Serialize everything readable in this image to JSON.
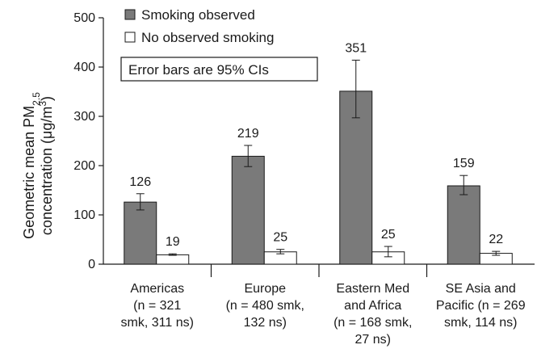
{
  "chart_data": {
    "type": "bar",
    "title": "",
    "xlabel": "",
    "ylabel": {
      "line1_prefix": "Geometric mean PM",
      "line1_sub": "2.5",
      "line2_prefix": "concentration (μg/m",
      "line2_sup": "3",
      "line2_suffix": ")"
    },
    "ylim": [
      0,
      500
    ],
    "yticks": [
      0,
      100,
      200,
      300,
      400,
      500
    ],
    "categories": [
      [
        "Americas",
        "(n = 321",
        "smk, 311 ns)"
      ],
      [
        "Europe",
        "(n = 480 smk,",
        "132 ns)"
      ],
      [
        "Eastern Med",
        "and Africa",
        "(n = 168 smk,",
        "27 ns)"
      ],
      [
        "SE Asia and",
        "Pacific (n = 269",
        "smk, 114 ns)"
      ]
    ],
    "series": [
      {
        "name": "Smoking observed",
        "color": "#7a7a7a",
        "values": [
          126,
          219,
          351,
          159
        ],
        "labels": [
          "126",
          "219",
          "351",
          "159"
        ],
        "ci_low": [
          110,
          198,
          297,
          141
        ],
        "ci_high": [
          143,
          241,
          414,
          180
        ]
      },
      {
        "name": "No observed smoking",
        "color": "#ffffff",
        "values": [
          19,
          25,
          25,
          22
        ],
        "labels": [
          "19",
          "25",
          "25",
          "22"
        ],
        "ci_low": [
          18,
          21,
          15,
          18
        ],
        "ci_high": [
          21,
          30,
          36,
          26
        ]
      }
    ],
    "annotation": "Error bars are 95% CIs",
    "legend_position": "top-left"
  }
}
